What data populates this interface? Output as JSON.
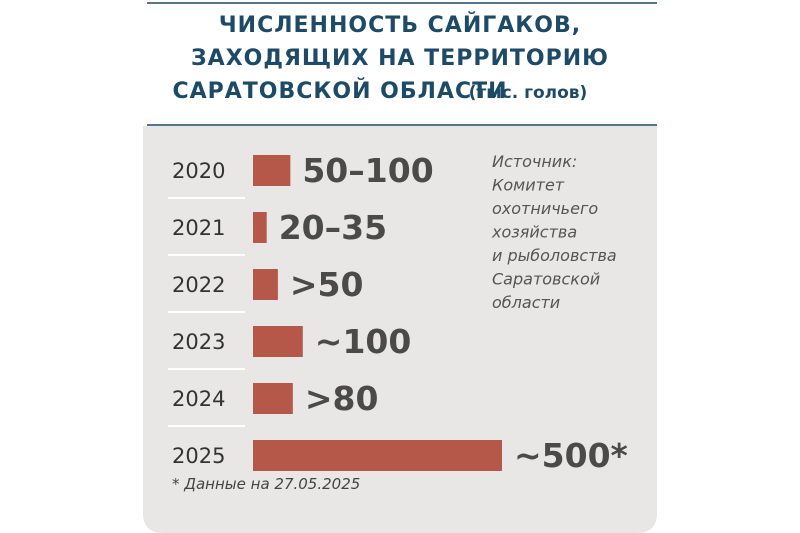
{
  "chart_data": {
    "type": "bar",
    "orientation": "horizontal",
    "title_lines": [
      "ЧИСЛЕННОСТЬ САЙГАКОВ,",
      "ЗАХОДЯЩИХ НА ТЕРРИТОРИЮ",
      "САРАТОВСКОЙ ОБЛАСТИ"
    ],
    "unit": "(тыс. голов)",
    "categories": [
      "2020",
      "2021",
      "2022",
      "2023",
      "2024",
      "2025"
    ],
    "values": [
      75,
      27.5,
      50,
      100,
      80,
      500
    ],
    "value_labels": [
      "50–100",
      "20–35",
      ">50",
      "~100",
      ">80",
      "~500*"
    ],
    "color": "#b5584a",
    "source_lines": [
      "Источник:",
      "Комитет",
      "охотничьего",
      "хозяйства",
      "и рыболовства",
      "Саратовской",
      "области"
    ],
    "footnote": "* Данные на 27.05.2025"
  }
}
